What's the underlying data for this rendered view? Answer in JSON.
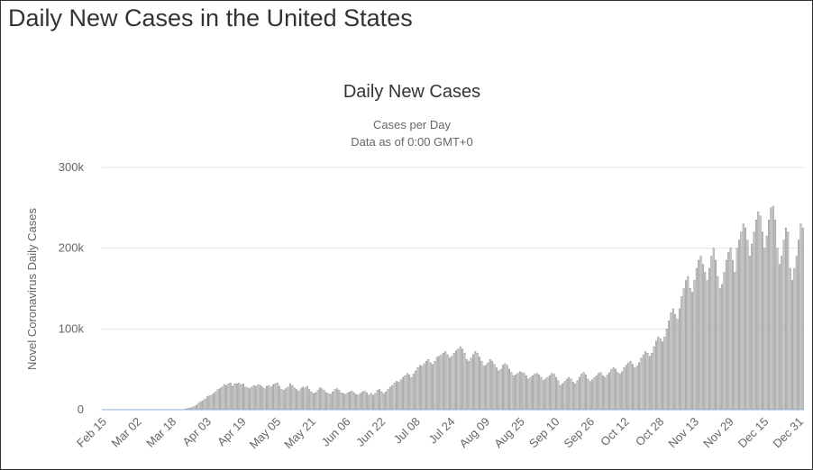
{
  "page": {
    "title": "Daily New Cases in the United States"
  },
  "colors": {
    "bar_fill": "#dedede",
    "bar_stroke": "#8d8d8d",
    "baseline": "#8fa8d6",
    "gridline": "#e6e6e6",
    "text": "#666666",
    "title": "#333333"
  },
  "chart_data": {
    "type": "bar",
    "title": "Daily New Cases",
    "subtitle_lines": [
      "Cases per Day",
      "Data as of 0:00 GMT+0"
    ],
    "ylabel": "Novel Coronavirus Daily Cases",
    "xlabel": "",
    "ylim": [
      0,
      300000
    ],
    "yticks": [
      {
        "value": 0,
        "label": "0"
      },
      {
        "value": 100000,
        "label": "100k"
      },
      {
        "value": 200000,
        "label": "200k"
      },
      {
        "value": 300000,
        "label": "300k"
      }
    ],
    "xticks": [
      "Feb 15",
      "Mar 02",
      "Mar 18",
      "Apr 03",
      "Apr 19",
      "May 05",
      "May 21",
      "Jun 06",
      "Jun 22",
      "Jul 08",
      "Jul 24",
      "Aug 09",
      "Aug 25",
      "Sep 10",
      "Sep 26",
      "Oct 12",
      "Oct 28",
      "Nov 13",
      "Nov 29",
      "Dec 15",
      "Dec 31"
    ],
    "grid": true,
    "legend": "none",
    "x_start": "Feb 15",
    "x_end": "Dec 31",
    "values": [
      0,
      0,
      0,
      0,
      0,
      0,
      0,
      0,
      0,
      0,
      0,
      0,
      0,
      0,
      0,
      0,
      0,
      0,
      0,
      0,
      0,
      0,
      0,
      0,
      0,
      0,
      0,
      0,
      0,
      0,
      0,
      0,
      0,
      0,
      0,
      0,
      0,
      0,
      0,
      1000,
      1500,
      2000,
      3000,
      4000,
      5500,
      8000,
      10000,
      11000,
      13000,
      16000,
      17000,
      18000,
      20000,
      22000,
      25000,
      26000,
      28000,
      31000,
      30000,
      32000,
      33000,
      29000,
      32000,
      32000,
      33000,
      31000,
      32000,
      28000,
      27000,
      26000,
      28000,
      30000,
      29000,
      31000,
      30000,
      28000,
      26000,
      29000,
      30000,
      28000,
      31000,
      32000,
      33000,
      29000,
      25000,
      24000,
      26000,
      28000,
      32000,
      30000,
      27000,
      25000,
      23000,
      26000,
      28000,
      27000,
      29000,
      25000,
      22000,
      20000,
      21000,
      24000,
      27000,
      26000,
      24000,
      21000,
      20000,
      19000,
      22000,
      25000,
      26000,
      24000,
      21000,
      20000,
      19000,
      21000,
      22000,
      23000,
      21000,
      19000,
      18000,
      20000,
      22000,
      23000,
      21000,
      18000,
      20000,
      18000,
      20000,
      24000,
      25000,
      22000,
      20000,
      22000,
      25000,
      28000,
      30000,
      33000,
      35000,
      34000,
      37000,
      40000,
      42000,
      45000,
      43000,
      40000,
      44000,
      48000,
      52000,
      55000,
      54000,
      57000,
      60000,
      62000,
      58000,
      56000,
      60000,
      65000,
      66000,
      68000,
      70000,
      72000,
      68000,
      64000,
      66000,
      70000,
      73000,
      75000,
      78000,
      75000,
      70000,
      62000,
      60000,
      64000,
      68000,
      72000,
      70000,
      65000,
      60000,
      54000,
      55000,
      58000,
      62000,
      60000,
      56000,
      52000,
      48000,
      50000,
      55000,
      57000,
      55000,
      50000,
      46000,
      42000,
      43000,
      45000,
      47000,
      46000,
      45000,
      42000,
      38000,
      40000,
      42000,
      44000,
      45000,
      43000,
      40000,
      36000,
      38000,
      40000,
      42000,
      45000,
      44000,
      40000,
      36000,
      30000,
      32000,
      35000,
      38000,
      40000,
      38000,
      34000,
      32000,
      36000,
      40000,
      44000,
      46000,
      43000,
      38000,
      35000,
      37000,
      40000,
      42000,
      45000,
      46000,
      42000,
      40000,
      43000,
      46000,
      50000,
      52000,
      50000,
      46000,
      44000,
      47000,
      52000,
      55000,
      58000,
      60000,
      56000,
      52000,
      54000,
      58000,
      64000,
      68000,
      72000,
      70000,
      66000,
      70000,
      78000,
      85000,
      90000,
      88000,
      84000,
      90000,
      100000,
      110000,
      120000,
      125000,
      118000,
      112000,
      125000,
      140000,
      150000,
      160000,
      165000,
      150000,
      145000,
      160000,
      175000,
      185000,
      190000,
      180000,
      170000,
      160000,
      175000,
      190000,
      200000,
      185000,
      165000,
      150000,
      155000,
      170000,
      185000,
      195000,
      200000,
      185000,
      170000,
      200000,
      210000,
      220000,
      230000,
      225000,
      210000,
      190000,
      205000,
      220000,
      235000,
      245000,
      240000,
      220000,
      200000,
      215000,
      235000,
      250000,
      252000,
      235000,
      200000,
      180000,
      190000,
      210000,
      225000,
      220000,
      175000,
      160000,
      175000,
      190000,
      210000,
      230000,
      225000
    ]
  }
}
